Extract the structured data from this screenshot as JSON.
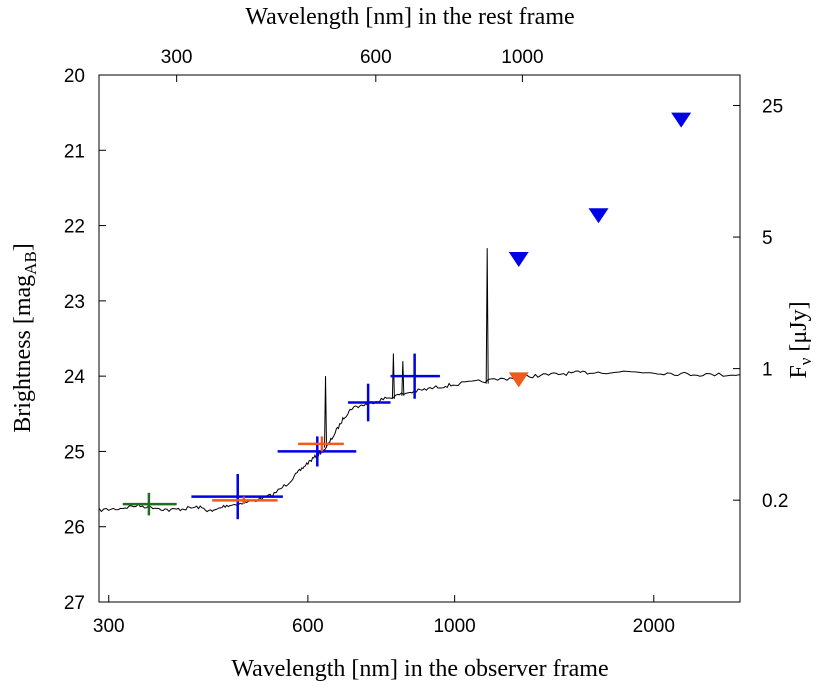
{
  "chart_data": {
    "type": "scatter",
    "title": "",
    "xlabel": "Wavelength [nm] in the observer frame",
    "x2label": "Wavelength [nm] in the rest frame",
    "ylabel": {
      "main": "Brightness [mag",
      "sub": "AB",
      "end": "]"
    },
    "y2label": {
      "main": "F",
      "sub": "ν",
      "end": " [μJy]"
    },
    "x_scale": "log",
    "xlim": [
      290,
      2700
    ],
    "ylim": [
      27,
      20
    ],
    "x_ticks": [
      {
        "value": 300,
        "label": "300"
      },
      {
        "value": 600,
        "label": "600"
      },
      {
        "value": 1000,
        "label": "1000"
      },
      {
        "value": 2000,
        "label": "2000"
      }
    ],
    "x2_ticks": [
      {
        "value": 300,
        "label": "300"
      },
      {
        "value": 600,
        "label": "600"
      },
      {
        "value": 1000,
        "label": "1000"
      }
    ],
    "x2_axis_observer_positions": [
      380,
      760,
      1266
    ],
    "y_ticks": [
      {
        "value": 20,
        "label": "20"
      },
      {
        "value": 21,
        "label": "21"
      },
      {
        "value": 22,
        "label": "22"
      },
      {
        "value": 23,
        "label": "23"
      },
      {
        "value": 24,
        "label": "24"
      },
      {
        "value": 25,
        "label": "25"
      },
      {
        "value": 26,
        "label": "26"
      },
      {
        "value": 27,
        "label": "27"
      }
    ],
    "y2_ticks": [
      {
        "value": 25,
        "label": "25"
      },
      {
        "value": 5,
        "label": "5"
      },
      {
        "value": 1,
        "label": "1"
      },
      {
        "value": 0.2,
        "label": "0.2"
      }
    ],
    "grid": false,
    "colors": {
      "green": "#1f6e1f",
      "blue": "#0000e6",
      "orange": "#f05a1a",
      "model": "#000000"
    },
    "series": [
      {
        "color": "green",
        "kind": "errorbar",
        "points": [
          {
            "x": 345,
            "y": 25.7,
            "xerr": [
              315,
              380
            ],
            "yerr": [
              25.55,
              25.85
            ]
          }
        ]
      },
      {
        "color": "blue",
        "kind": "errorbar",
        "points": [
          {
            "x": 470,
            "y": 25.6,
            "xerr": [
              400,
              550
            ],
            "yerr": [
              25.3,
              25.9
            ]
          },
          {
            "x": 620,
            "y": 25.0,
            "xerr": [
              540,
              710
            ],
            "yerr": [
              24.8,
              25.2
            ]
          },
          {
            "x": 740,
            "y": 24.35,
            "xerr": [
              690,
              800
            ],
            "yerr": [
              24.1,
              24.6
            ]
          },
          {
            "x": 870,
            "y": 24.0,
            "xerr": [
              800,
              950
            ],
            "yerr": [
              23.7,
              24.3
            ]
          }
        ]
      },
      {
        "color": "orange",
        "kind": "errorbar",
        "points": [
          {
            "x": 480,
            "y": 25.65,
            "xerr": [
              430,
              540
            ],
            "yerr": [
              25.6,
              25.7
            ]
          },
          {
            "x": 630,
            "y": 24.9,
            "xerr": [
              580,
              680
            ],
            "yerr": [
              24.8,
              25.0
            ]
          }
        ]
      },
      {
        "color": "blue",
        "kind": "upper_limit",
        "points": [
          {
            "x": 1250,
            "y": 22.45
          },
          {
            "x": 1650,
            "y": 21.87
          },
          {
            "x": 2200,
            "y": 20.6
          }
        ]
      },
      {
        "color": "orange",
        "kind": "upper_limit",
        "points": [
          {
            "x": 1250,
            "y": 24.05
          }
        ]
      }
    ],
    "model_spectrum": {
      "color": "model",
      "points": [
        [
          290,
          25.78
        ],
        [
          310,
          25.76
        ],
        [
          330,
          25.72
        ],
        [
          350,
          25.74
        ],
        [
          370,
          25.78
        ],
        [
          390,
          25.76
        ],
        [
          410,
          25.74
        ],
        [
          430,
          25.8
        ],
        [
          450,
          25.72
        ],
        [
          470,
          25.7
        ],
        [
          500,
          25.65
        ],
        [
          530,
          25.58
        ],
        [
          560,
          25.42
        ],
        [
          580,
          25.28
        ],
        [
          600,
          25.15
        ],
        [
          620,
          25.05
        ],
        [
          640,
          24.95
        ],
        [
          660,
          24.75
        ],
        [
          680,
          24.55
        ],
        [
          700,
          24.42
        ],
        [
          730,
          24.38
        ],
        [
          760,
          24.33
        ],
        [
          800,
          24.28
        ],
        [
          850,
          24.22
        ],
        [
          900,
          24.18
        ],
        [
          950,
          24.14
        ],
        [
          1000,
          24.11
        ],
        [
          1100,
          24.07
        ],
        [
          1200,
          24.03
        ],
        [
          1300,
          24.0
        ],
        [
          1400,
          23.98
        ],
        [
          1500,
          23.96
        ],
        [
          1600,
          23.95
        ],
        [
          1800,
          23.94
        ],
        [
          2000,
          23.95
        ],
        [
          2200,
          23.97
        ],
        [
          2400,
          23.98
        ],
        [
          2700,
          23.98
        ]
      ],
      "spikes": [
        {
          "x": 638,
          "base": 24.95,
          "top": 24.0
        },
        {
          "x": 808,
          "base": 24.3,
          "top": 23.7
        },
        {
          "x": 835,
          "base": 24.26,
          "top": 23.8
        },
        {
          "x": 1120,
          "base": 24.1,
          "top": 22.3
        }
      ]
    }
  }
}
